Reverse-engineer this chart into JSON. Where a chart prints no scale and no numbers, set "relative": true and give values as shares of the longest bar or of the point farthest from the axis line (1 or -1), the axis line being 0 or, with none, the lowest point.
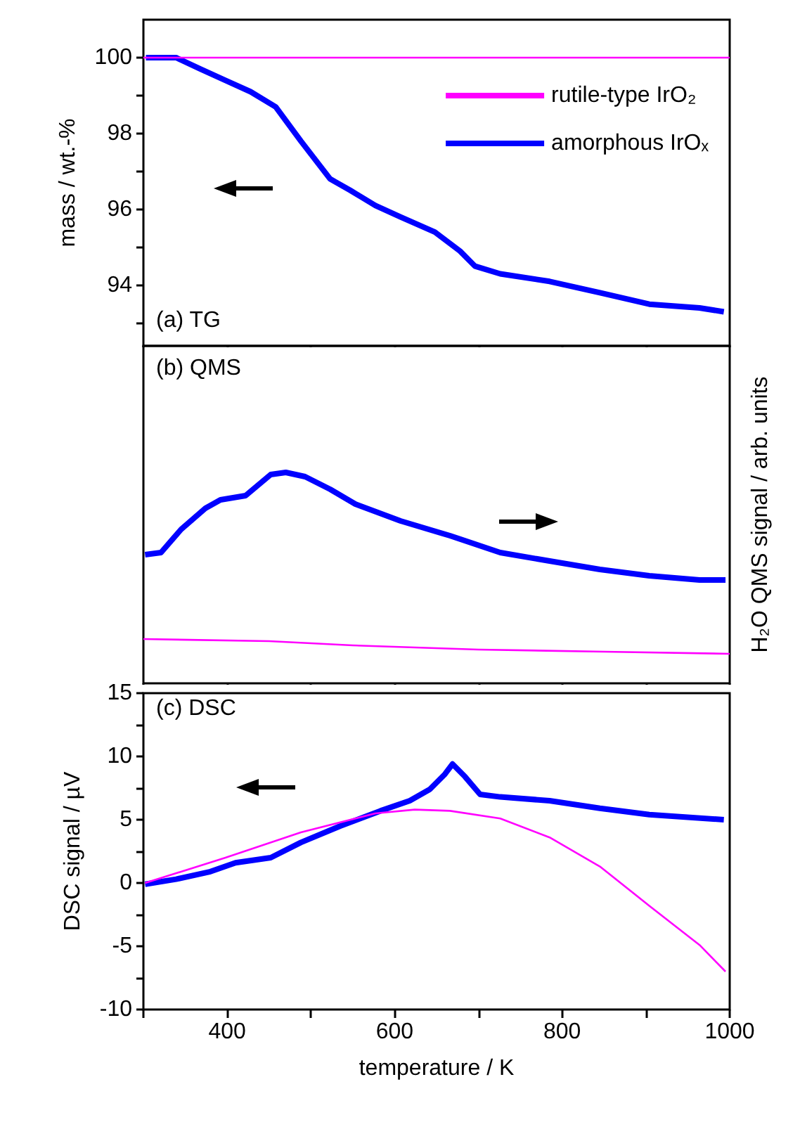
{
  "chart_data": [
    {
      "type": "line",
      "title": "(a) TG",
      "ylabel": "mass / wt.-%",
      "xlim": [
        300,
        1000
      ],
      "xticks": [
        {
          "value": 300,
          "label": null
        },
        400,
        {
          "value": 500,
          "label": null
        },
        600,
        {
          "value": 700,
          "label": null
        },
        800,
        {
          "value": 900,
          "label": null
        },
        1000
      ],
      "ylim": [
        92.4,
        101
      ],
      "yticks": [
        {
          "value": 93,
          "label": null
        },
        94,
        {
          "value": 95,
          "label": null
        },
        96,
        {
          "value": 97,
          "label": null
        },
        98,
        {
          "value": 99,
          "label": null
        },
        100
      ],
      "tick_labels": "y",
      "legend": "top right",
      "series": [
        {
          "name": "rutile-type IrO₂",
          "color": "#ff00ff",
          "x": [
            300,
            1000
          ],
          "values": [
            100,
            100
          ]
        },
        {
          "name": "amorphous IrOₓ",
          "color": "#0000ff",
          "x": [
            303,
            339,
            368,
            398,
            428,
            458,
            488,
            523,
            547,
            577,
            607,
            648,
            678,
            696,
            726,
            785,
            845,
            904,
            964,
            993
          ],
          "values": [
            100.0,
            100.0,
            99.7,
            99.4,
            99.1,
            98.7,
            97.8,
            96.8,
            96.5,
            96.1,
            95.8,
            95.4,
            94.9,
            94.5,
            94.3,
            94.1,
            93.8,
            93.5,
            93.4,
            93.3
          ]
        }
      ]
    },
    {
      "type": "line",
      "title": "(b) QMS",
      "y2label": "H₂O QMS signal / arb. units",
      "relative": true,
      "xlim": [
        300,
        1000
      ],
      "xticks": [
        {
          "value": 300,
          "label": null
        },
        400,
        {
          "value": 500,
          "label": null
        },
        600,
        {
          "value": 700,
          "label": null
        },
        800,
        {
          "value": 900,
          "label": null
        },
        1000
      ],
      "tick_labels": false,
      "series": [
        {
          "color": "#ff00ff",
          "axis": "y2",
          "x": [
            300,
            450,
            550,
            700,
            850,
            1000
          ],
          "values": [
            0.21,
            0.2,
            0.18,
            0.16,
            0.15,
            0.14
          ]
        },
        {
          "color": "#0000ff",
          "axis": "y2",
          "x": [
            302,
            321,
            345,
            374,
            392,
            422,
            452,
            470,
            493,
            523,
            553,
            607,
            666,
            726,
            785,
            845,
            904,
            964,
            995
          ],
          "values": [
            0.61,
            0.62,
            0.73,
            0.83,
            0.87,
            0.89,
            0.99,
            1,
            0.98,
            0.92,
            0.85,
            0.77,
            0.7,
            0.62,
            0.58,
            0.54,
            0.51,
            0.49,
            0.49
          ]
        }
      ]
    },
    {
      "type": "line",
      "title": "(c) DSC",
      "xlabel": "temperature / K",
      "ylabel": "DSC signal / µV",
      "xlim": [
        300,
        1000
      ],
      "xticks": [
        {
          "value": 300,
          "label": null
        },
        400,
        {
          "value": 500,
          "label": null
        },
        600,
        {
          "value": 700,
          "label": null
        },
        800,
        {
          "value": 900,
          "label": null
        },
        1000
      ],
      "ylim": [
        -10,
        15
      ],
      "yticks": [
        -10,
        {
          "value": -7.5,
          "label": null
        },
        -5,
        {
          "value": -2.5,
          "label": null
        },
        0,
        {
          "value": 2.5,
          "label": null
        },
        5,
        {
          "value": 7.5,
          "label": null
        },
        10,
        {
          "value": 12.5,
          "label": null
        },
        15
      ],
      "series": [
        {
          "color": "#ff00ff",
          "x": [
            302,
            398,
            488,
            577,
            624,
            666,
            726,
            785,
            845,
            904,
            964,
            995
          ],
          "values": [
            0,
            2,
            4,
            5.5,
            5.8,
            5.7,
            5.1,
            3.6,
            1.3,
            -1.8,
            -4.9,
            -7
          ]
        },
        {
          "color": "#0000ff",
          "x": [
            302,
            339,
            380,
            410,
            452,
            488,
            535,
            583,
            618,
            642,
            660,
            669,
            684,
            702,
            726,
            785,
            845,
            904,
            993
          ],
          "values": [
            -0.1,
            0.3,
            0.9,
            1.6,
            2,
            3.2,
            4.5,
            5.7,
            6.5,
            7.4,
            8.6,
            9.4,
            8.4,
            7,
            6.8,
            6.5,
            5.9,
            5.4,
            5
          ]
        }
      ]
    }
  ]
}
